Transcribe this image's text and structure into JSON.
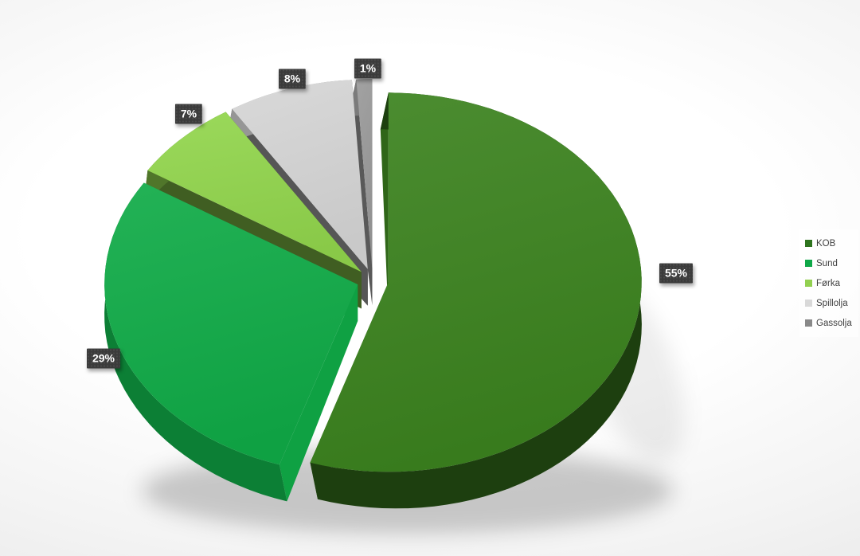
{
  "chart_data": {
    "type": "pie",
    "style": "3d-exploded",
    "title": "",
    "direction": "clockwise",
    "start_angle_deg": 0,
    "legend_position": "right",
    "grid": false,
    "series": [
      {
        "name": "KOB",
        "value": 55,
        "label": "55%",
        "color": "#3c831f",
        "legend_color": "#2e741e"
      },
      {
        "name": "Sund",
        "value": 29,
        "label": "29%",
        "color": "#10ab47",
        "legend_color": "#0fa848"
      },
      {
        "name": "Førka",
        "value": 7,
        "label": "7%",
        "color": "#92d64d",
        "legend_color": "#92d050"
      },
      {
        "name": "Spillolja",
        "value": 8,
        "label": "8%",
        "color": "#d6d6d6",
        "legend_color": "#d9d9d9"
      },
      {
        "name": "Gassolja",
        "value": 1,
        "label": "1%",
        "color": "#9a9a9a",
        "legend_color": "#898989"
      }
    ]
  },
  "label_style": {
    "bg": "#3b3b3b",
    "text_color": "#ffffff"
  },
  "legend": {
    "bg": "#f5f5f5",
    "text_color": "#3f3f3f"
  },
  "background": {
    "center": "#ffffff",
    "edge": "#e4e4e4"
  }
}
